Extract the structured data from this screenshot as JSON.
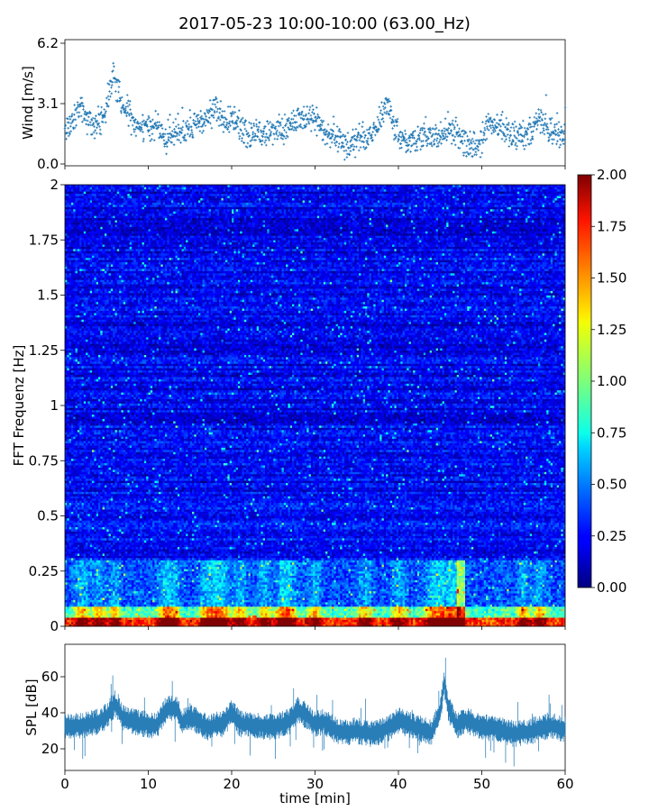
{
  "title": "2017-05-23 10:00-10:00 (63.00_Hz)",
  "chart_data": [
    {
      "type": "scatter",
      "ylabel": "Wind [m/s]",
      "yticks": [
        "0.0",
        "3.1",
        "6.2"
      ],
      "ylim": [
        0,
        6.2
      ],
      "xlim": [
        0,
        60
      ],
      "marker": "+",
      "color": "#1f77b4",
      "trend": {
        "x": [
          0,
          1,
          2,
          3,
          4,
          5,
          5.8,
          6.5,
          7.5,
          8.5,
          10,
          11,
          12,
          13,
          14,
          15,
          16,
          17,
          18,
          19,
          20,
          21,
          22,
          23,
          24,
          25,
          26,
          27,
          28,
          29,
          30,
          31,
          32,
          33,
          34,
          35,
          36,
          37,
          38,
          38.7,
          39.5,
          40,
          41,
          42,
          43,
          44,
          45,
          46,
          47,
          48,
          49,
          50,
          51,
          52,
          53,
          54,
          55,
          56,
          57,
          57.5,
          58,
          59,
          60
        ],
        "y": [
          1.6,
          2.2,
          2.9,
          2.1,
          2.0,
          2.8,
          4.6,
          3.4,
          2.7,
          2.0,
          1.7,
          1.9,
          1.4,
          1.5,
          1.8,
          1.7,
          2.0,
          2.2,
          2.9,
          2.1,
          2.4,
          1.8,
          1.4,
          1.6,
          1.3,
          1.6,
          1.8,
          2.0,
          2.4,
          2.2,
          2.5,
          1.7,
          1.5,
          1.2,
          1.0,
          1.2,
          1.4,
          1.7,
          2.4,
          3.2,
          1.8,
          1.5,
          1.1,
          1.3,
          1.5,
          1.3,
          1.6,
          1.9,
          1.5,
          1.2,
          0.8,
          1.4,
          1.9,
          2.0,
          1.8,
          1.4,
          1.2,
          1.6,
          2.5,
          2.1,
          1.6,
          1.5,
          1.6
        ]
      },
      "spread": 0.6,
      "points": 1500
    },
    {
      "type": "heatmap",
      "ylabel": "FFT Frequenz [Hz]",
      "yticks": [
        "0",
        "0.25",
        "0.5",
        "0.75",
        "1",
        "1.25",
        "1.5",
        "1.75",
        "2"
      ],
      "ylim": [
        0,
        2
      ],
      "xlim": [
        0,
        60
      ],
      "colormap": "jet",
      "colorbar": {
        "ticks": [
          "0.00",
          "0.25",
          "0.50",
          "0.75",
          "1.00",
          "1.25",
          "1.50",
          "1.75",
          "2.00"
        ],
        "range": [
          0,
          2
        ]
      },
      "time_columns": 240,
      "frequency_bins": 200,
      "low_frequency_hotspots_min": [
        2,
        4,
        6,
        12,
        13,
        17,
        18,
        19,
        21,
        24,
        26,
        27,
        30,
        36,
        40,
        44,
        45,
        46,
        47,
        55,
        57
      ],
      "vertical_streak_min": 47.5
    },
    {
      "type": "line",
      "ylabel": "SPL [dB]",
      "yticks": [
        "20",
        "40",
        "60"
      ],
      "ylim": [
        8,
        78
      ],
      "xlim": [
        0,
        60
      ],
      "xlabel": "time [min]",
      "xticks": [
        "0",
        "10",
        "20",
        "30",
        "40",
        "50",
        "60"
      ],
      "color": "#1f77b4",
      "trend": {
        "x": [
          0,
          2,
          4,
          5,
          6,
          7,
          9,
          11,
          12,
          13,
          13.5,
          14,
          15,
          17,
          19,
          20,
          21,
          23,
          25,
          27,
          28,
          30,
          31,
          33,
          35,
          37,
          38,
          39,
          40,
          42,
          44,
          45,
          45.5,
          46,
          47,
          48,
          50,
          52,
          54,
          56,
          58,
          60
        ],
        "y": [
          32,
          33,
          35,
          38,
          45,
          37,
          34,
          33,
          41,
          43,
          42,
          34,
          38,
          32,
          34,
          40,
          34,
          33,
          32,
          35,
          42,
          34,
          35,
          29,
          30,
          28,
          30,
          32,
          36,
          32,
          29,
          40,
          57,
          42,
          33,
          36,
          32,
          31,
          28,
          30,
          33,
          31
        ]
      },
      "spread": 5
    }
  ]
}
